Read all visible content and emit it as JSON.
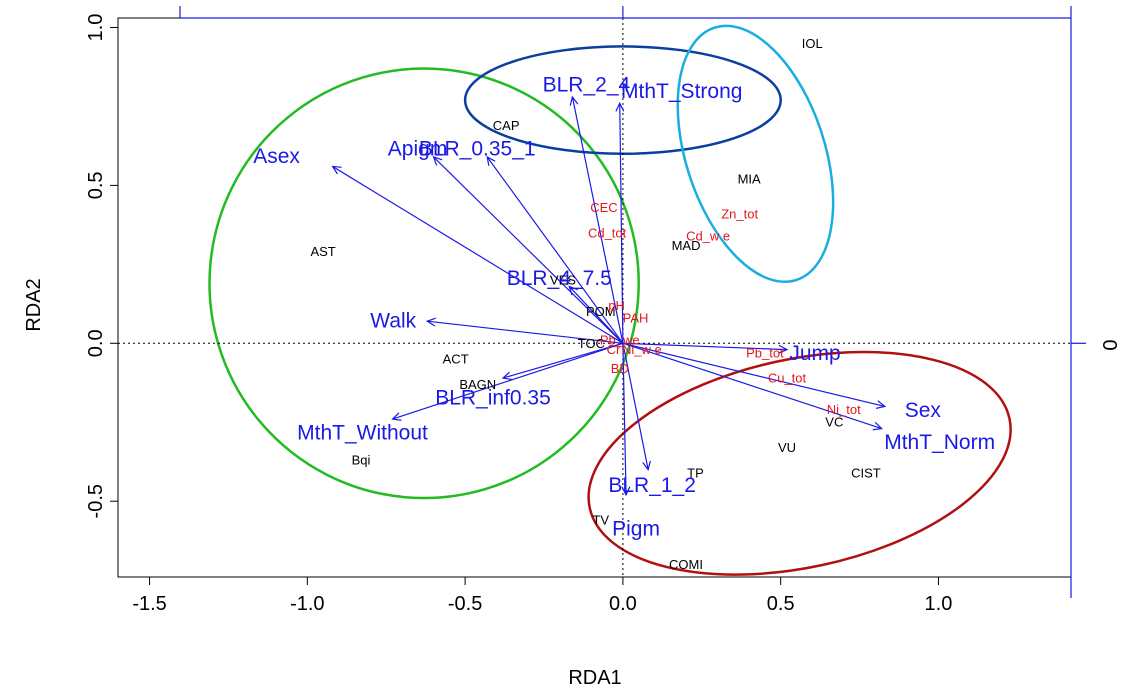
{
  "chart_data": {
    "type": "scatter",
    "xlabel": "RDA1",
    "ylabel": "RDA2",
    "xlim": [
      -1.6,
      1.42
    ],
    "ylim": [
      -0.74,
      1.03
    ],
    "x_ticks": [
      "-1.5",
      "-1.0",
      "-0.5",
      "0.0",
      "0.5",
      "1.0"
    ],
    "y_ticks": [
      "-0.5",
      "0.0",
      "0.5",
      "1.0"
    ],
    "right_axis_tick": "0",
    "reference_lines": {
      "x": 0,
      "y": 0,
      "style": "dotted"
    },
    "colors": {
      "sites": "#000000",
      "environment": "#e8141b",
      "traits": "#1a1ae6",
      "axis_box": "#1a1ae6",
      "groups": [
        "#22bb22",
        "#0a3fa0",
        "#18aee0",
        "#b01010"
      ]
    },
    "sites": [
      {
        "label": "IOL",
        "x": 0.6,
        "y": 0.95
      },
      {
        "label": "CAP",
        "x": -0.37,
        "y": 0.69
      },
      {
        "label": "MIA",
        "x": 0.4,
        "y": 0.52
      },
      {
        "label": "MAD",
        "x": 0.2,
        "y": 0.31
      },
      {
        "label": "AST",
        "x": -0.95,
        "y": 0.29
      },
      {
        "label": "VES",
        "x": -0.19,
        "y": 0.2
      },
      {
        "label": "POM",
        "x": -0.07,
        "y": 0.1
      },
      {
        "label": "TOC",
        "x": -0.1,
        "y": 0.0
      },
      {
        "label": "ACT",
        "x": -0.53,
        "y": -0.05
      },
      {
        "label": "BAGN",
        "x": -0.46,
        "y": -0.13
      },
      {
        "label": "Bqi",
        "x": -0.83,
        "y": -0.37
      },
      {
        "label": "VC",
        "x": 0.67,
        "y": -0.25
      },
      {
        "label": "VU",
        "x": 0.52,
        "y": -0.33
      },
      {
        "label": "CIST",
        "x": 0.77,
        "y": -0.41
      },
      {
        "label": "TP",
        "x": 0.23,
        "y": -0.41
      },
      {
        "label": "TV",
        "x": -0.07,
        "y": -0.56
      },
      {
        "label": "COMI",
        "x": 0.2,
        "y": -0.7
      }
    ],
    "environment": [
      {
        "label": "CEC",
        "x": -0.06,
        "y": 0.43
      },
      {
        "label": "Cd_tot",
        "x": -0.05,
        "y": 0.35
      },
      {
        "label": "Zn_tot",
        "x": 0.37,
        "y": 0.41
      },
      {
        "label": "Cd_w e",
        "x": 0.27,
        "y": 0.34
      },
      {
        "label": "pH",
        "x": -0.02,
        "y": 0.12
      },
      {
        "label": "PAH",
        "x": 0.04,
        "y": 0.08
      },
      {
        "label": "Pb_we",
        "x": -0.01,
        "y": 0.01
      },
      {
        "label": "Cr",
        "x": -0.03,
        "y": -0.02
      },
      {
        "label": "Ni_w e",
        "x": 0.06,
        "y": -0.02
      },
      {
        "label": "Pb_tot",
        "x": 0.45,
        "y": -0.03
      },
      {
        "label": "BD",
        "x": -0.01,
        "y": -0.08
      },
      {
        "label": "Cu_tot",
        "x": 0.52,
        "y": -0.11
      },
      {
        "label": "Ni_tot",
        "x": 0.7,
        "y": -0.21
      }
    ],
    "traits": [
      {
        "label": "BLR_2_4",
        "x": -0.16,
        "y": 0.78
      },
      {
        "label": "MthT_Strong",
        "x": -0.01,
        "y": 0.76
      },
      {
        "label": "Apigm",
        "x": -0.6,
        "y": 0.59
      },
      {
        "label": "BLR_0.35_1",
        "x": -0.43,
        "y": 0.59
      },
      {
        "label": "Asex",
        "x": -0.92,
        "y": 0.56
      },
      {
        "label": "BLR_4_7.5",
        "x": -0.17,
        "y": 0.18
      },
      {
        "label": "Walk",
        "x": -0.62,
        "y": 0.07
      },
      {
        "label": "BLR_inf0.35",
        "x": -0.38,
        "y": -0.11
      },
      {
        "label": "MthT_Without",
        "x": -0.73,
        "y": -0.24
      },
      {
        "label": "BLR_1_2",
        "x": 0.08,
        "y": -0.4
      },
      {
        "label": "Pigm",
        "x": 0.01,
        "y": -0.48
      },
      {
        "label": "Jump",
        "x": 0.52,
        "y": -0.02
      },
      {
        "label": "Sex",
        "x": 0.83,
        "y": -0.2
      },
      {
        "label": "MthT_Norm",
        "x": 0.82,
        "y": -0.27
      }
    ],
    "groups": [
      {
        "center": [
          -0.63,
          0.19
        ],
        "radii": [
          0.68,
          0.68
        ],
        "rotation": 5,
        "color": "#22bb22"
      },
      {
        "center": [
          0.0,
          0.77
        ],
        "radii": [
          0.5,
          0.17
        ],
        "rotation": 0,
        "color": "#0a3fa0"
      },
      {
        "center": [
          0.42,
          0.6
        ],
        "radii": [
          0.22,
          0.42
        ],
        "rotation": -18,
        "color": "#18aee0"
      },
      {
        "center": [
          0.56,
          -0.38
        ],
        "radii": [
          0.68,
          0.33
        ],
        "rotation": -12,
        "color": "#b01010"
      }
    ]
  }
}
